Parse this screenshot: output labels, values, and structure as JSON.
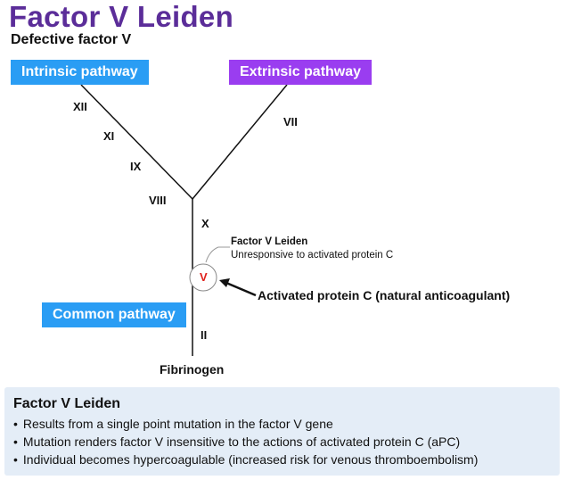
{
  "title": "Factor V Leiden",
  "subtitle": "Defective factor V",
  "pathways": {
    "intrinsic": "Intrinsic pathway",
    "extrinsic": "Extrinsic pathway",
    "common": "Common pathway"
  },
  "factors": {
    "xii": "XII",
    "xi": "XI",
    "ix": "IX",
    "viii": "VIII",
    "vii": "VII",
    "x": "X",
    "v": "V",
    "ii": "II",
    "fibrinogen": "Fibrinogen"
  },
  "callout": {
    "title": "Factor V Leiden",
    "text": "Unresponsive to activated protein C"
  },
  "apc_label": "Activated protein C (natural anticoagulant)",
  "colors": {
    "title": "#5b2d99",
    "intrinsic": "#2a9df4",
    "extrinsic": "#9a3df0",
    "common": "#2a9df4",
    "factor_v": "#e0201b",
    "info_bg": "#e4edf7"
  },
  "info": {
    "title": "Factor V Leiden",
    "bullets": [
      "Results from a single point mutation in the factor V gene",
      "Mutation renders factor V insensitive to the actions of activated protein C (aPC)",
      "Individual becomes hypercoagulable (increased risk for venous thromboembolism)"
    ]
  }
}
